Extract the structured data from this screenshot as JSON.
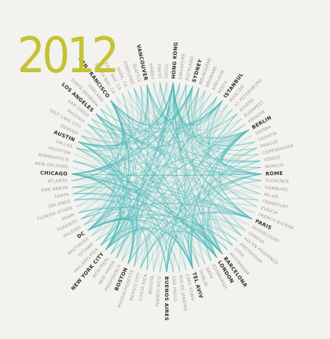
{
  "title": "2012",
  "nodes": [
    {
      "label": "TOKYO",
      "bold": false
    },
    {
      "label": "SEOUL",
      "bold": false
    },
    {
      "label": "HONG KONG",
      "bold": true
    },
    {
      "label": "SINGAPORE",
      "bold": false
    },
    {
      "label": "AUCKLAND",
      "bold": false
    },
    {
      "label": "SYDNEY",
      "bold": true
    },
    {
      "label": "MELBOURNE",
      "bold": false
    },
    {
      "label": "BRISBANE",
      "bold": false
    },
    {
      "label": "ADELAIDE",
      "bold": false
    },
    {
      "label": "PERTH",
      "bold": false
    },
    {
      "label": "ISTANBUL",
      "bold": true
    },
    {
      "label": "MOSCOW",
      "bold": false
    },
    {
      "label": "ST PETERSBURG",
      "bold": false
    },
    {
      "label": "ATHENS",
      "bold": false
    },
    {
      "label": "BUDAPEST",
      "bold": false
    },
    {
      "label": "KRAKOW",
      "bold": false
    },
    {
      "label": "BERLIN",
      "bold": true
    },
    {
      "label": "VIENNA",
      "bold": false
    },
    {
      "label": "CROATIA",
      "bold": false
    },
    {
      "label": "PRAGUE",
      "bold": false
    },
    {
      "label": "COPENHAGEN",
      "bold": false
    },
    {
      "label": "VENICE",
      "bold": false
    },
    {
      "label": "MUNICH",
      "bold": false
    },
    {
      "label": "ROME",
      "bold": true
    },
    {
      "label": "FLORENCE",
      "bold": false
    },
    {
      "label": "HAMBURG",
      "bold": false
    },
    {
      "label": "MILAN",
      "bold": false
    },
    {
      "label": "FRANKFURT",
      "bold": false
    },
    {
      "label": "ZURICH",
      "bold": false
    },
    {
      "label": "FRENCH RIVIERA",
      "bold": false
    },
    {
      "label": "PARIS",
      "bold": true
    },
    {
      "label": "DUSSELDORF",
      "bold": false
    },
    {
      "label": "GENEVA",
      "bold": false
    },
    {
      "label": "AIX-EN-PROVENCE",
      "bold": false
    },
    {
      "label": "AMSTERDAM",
      "bold": false
    },
    {
      "label": "LYON",
      "bold": false
    },
    {
      "label": "ROTTERDAM",
      "bold": false
    },
    {
      "label": "BARCELONA",
      "bold": true
    },
    {
      "label": "LONDON",
      "bold": true
    },
    {
      "label": "EDINBURGH",
      "bold": false
    },
    {
      "label": "BATH",
      "bold": false
    },
    {
      "label": "DUBLIN",
      "bold": false
    },
    {
      "label": "TEL AVIV",
      "bold": true
    },
    {
      "label": "CAPE TOWN",
      "bold": false
    },
    {
      "label": "RIO DE JANEIRO",
      "bold": false
    },
    {
      "label": "SAO PAULO",
      "bold": false
    },
    {
      "label": "BUENOS AIRES",
      "bold": true
    },
    {
      "label": "PUERTO RICO",
      "bold": false
    },
    {
      "label": "BOGOTA",
      "bold": false
    },
    {
      "label": "COSTA RICA",
      "bold": false
    },
    {
      "label": "MEXICO CITY",
      "bold": false
    },
    {
      "label": "MASSACHUSETTS",
      "bold": false
    },
    {
      "label": "BOSTON",
      "bold": true
    },
    {
      "label": "PROVIDENCE",
      "bold": false
    },
    {
      "label": "NEW HAVEN",
      "bold": false
    },
    {
      "label": "MONTREAL",
      "bold": false
    },
    {
      "label": "NEW YORK CITY",
      "bold": true
    },
    {
      "label": "PHILADELPHIA",
      "bold": false
    },
    {
      "label": "OTTAWA",
      "bold": false
    },
    {
      "label": "BALTIMORE",
      "bold": false
    },
    {
      "label": "DC",
      "bold": true
    },
    {
      "label": "RALEIGH",
      "bold": false
    },
    {
      "label": "TORONTO",
      "bold": false
    },
    {
      "label": "MIAMI",
      "bold": false
    },
    {
      "label": "FLORIDA OTHER",
      "bold": false
    },
    {
      "label": "ORLANDO",
      "bold": false
    },
    {
      "label": "TAMPA",
      "bold": false
    },
    {
      "label": "ANN ARBOR",
      "bold": false
    },
    {
      "label": "ATLANTA",
      "bold": false
    },
    {
      "label": "CHICAGO",
      "bold": true
    },
    {
      "label": "NEW ORLEANS",
      "bold": false
    },
    {
      "label": "MINNEAPOLIS",
      "bold": false
    },
    {
      "label": "HOUSTON",
      "bold": false
    },
    {
      "label": "DALLAS",
      "bold": false
    },
    {
      "label": "AUSTIN",
      "bold": true
    },
    {
      "label": "DENVER",
      "bold": false
    },
    {
      "label": "SALT LAKE CITY",
      "bold": false
    },
    {
      "label": "PHOENIX",
      "bold": false
    },
    {
      "label": "SAN DIEGO",
      "bold": false
    },
    {
      "label": "LOS ANGELES",
      "bold": true
    },
    {
      "label": "SANTA BARBARA",
      "bold": false
    },
    {
      "label": "OAKLAND",
      "bold": false
    },
    {
      "label": "SAN FRANCISCO",
      "bold": true
    },
    {
      "label": "SOUTH BAY, CA",
      "bold": false
    },
    {
      "label": "EAST BAY, CA",
      "bold": false
    },
    {
      "label": "NAPA, CA",
      "bold": false
    },
    {
      "label": "PORTLAND",
      "bold": false
    },
    {
      "label": "SEATTLE",
      "bold": false
    },
    {
      "label": "VANCOUVER",
      "bold": true
    },
    {
      "label": "HAWAII",
      "bold": false
    }
  ]
}
